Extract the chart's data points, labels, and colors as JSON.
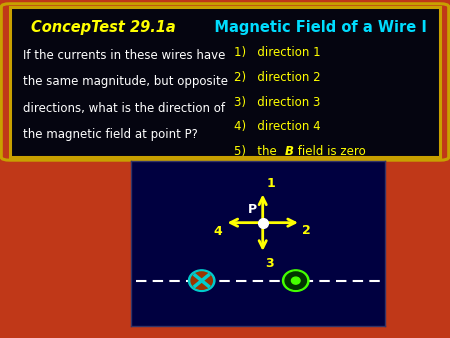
{
  "title_italic": "ConcepTest 29.1a",
  "title_regular": "   Magnetic Field of a Wire I",
  "question_lines": [
    "If the currents in these wires have",
    "the same magnitude, but opposite",
    "directions, what is the direction of",
    "the magnetic field at point P?"
  ],
  "answers": [
    "1)   direction 1",
    "2)   direction 2",
    "3)   direction 3",
    "4)   direction 4"
  ],
  "answer5_pre": "5)   the ",
  "answer5_italic": "B",
  "answer5_post": " field is zero",
  "bg_color": "#c03818",
  "box_bg": "#050510",
  "box_border": "#c8a000",
  "diagram_bg": "#000040",
  "arrow_color": "#ffff00",
  "label_color": "#ffff00",
  "P_label_color": "#ffffff",
  "answer_color": "#ffff00",
  "question_color": "#ffffff",
  "title_italic_color": "#ffff00",
  "title_regular_color": "#00ddff",
  "title_fontsize": 10.5,
  "question_fontsize": 8.5,
  "answer_fontsize": 8.5
}
